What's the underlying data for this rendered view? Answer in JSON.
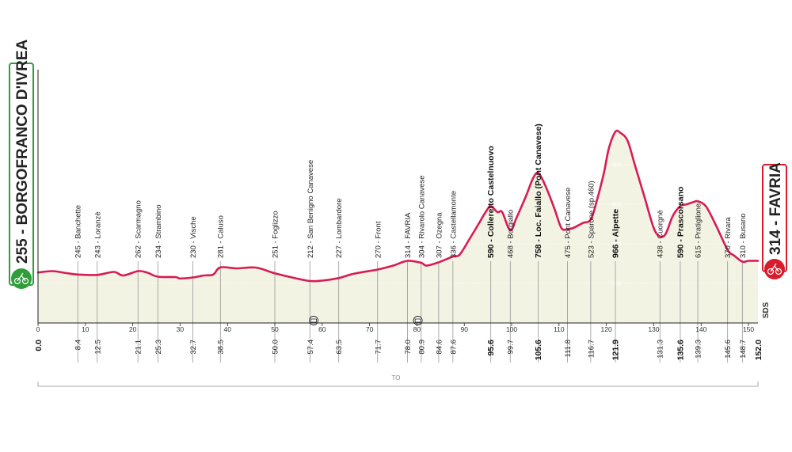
{
  "chart_data": {
    "type": "area",
    "series_color": "#d81c53",
    "fill_color": "#f3f3e4",
    "xlim": [
      0,
      152.0
    ],
    "ylim": [
      0,
      1000
    ],
    "x_ticks": [
      0,
      10,
      20,
      30,
      40,
      50,
      60,
      70,
      80,
      90,
      100,
      110,
      120,
      130,
      140,
      150
    ],
    "y_ticks": [
      200,
      400,
      600,
      800
    ],
    "start": {
      "label": "255 - BORGOFRANCO D'IVREA",
      "km": "0.0"
    },
    "finish": {
      "label": "314 - FAVRIA",
      "km": "152.0"
    },
    "points": [
      {
        "km": 8.4,
        "km_label": "8.4",
        "label": "245 - Banchette"
      },
      {
        "km": 12.5,
        "km_label": "12.5",
        "label": "243 - Loranzè"
      },
      {
        "km": 21.1,
        "km_label": "21.1",
        "label": "262 - Scarmagno"
      },
      {
        "km": 25.3,
        "km_label": "25.3",
        "label": "234 - Strambino"
      },
      {
        "km": 32.7,
        "km_label": "32.7",
        "label": "230 - Vische"
      },
      {
        "km": 38.5,
        "km_label": "38.5",
        "label": "281 - Caluso"
      },
      {
        "km": 50.0,
        "km_label": "50.0",
        "label": "251 - Foglizzo"
      },
      {
        "km": 57.4,
        "km_label": "57.4",
        "label": "212 - San Benigno Canavese"
      },
      {
        "km": 63.5,
        "km_label": "63.5",
        "label": "227 - Lombardore"
      },
      {
        "km": 71.7,
        "km_label": "71.7",
        "label": "270 - Front"
      },
      {
        "km": 78.0,
        "km_label": "78.0",
        "label": "314 - FAVRIA"
      },
      {
        "km": 80.9,
        "km_label": "80.9",
        "label": "304 - Rivarolo Canavese"
      },
      {
        "km": 84.6,
        "km_label": "84.6",
        "label": "307 - Ozegna"
      },
      {
        "km": 87.6,
        "km_label": "87.6",
        "label": "336 - Castellamonte"
      },
      {
        "km": 95.6,
        "km_label": "95.6",
        "label": "590 - Colleretto Castelnuovo",
        "bold": true
      },
      {
        "km": 99.7,
        "km_label": "99.7",
        "label": "468 - Borgiallo"
      },
      {
        "km": 105.6,
        "km_label": "105.6",
        "label": "758 - Loc. Faiallo (Pont Canavese)",
        "bold": true
      },
      {
        "km": 111.8,
        "km_label": "111.8",
        "label": "475 - Pont Canavese"
      },
      {
        "km": 116.7,
        "km_label": "116.7",
        "label": "523 - Sparone (sp.460)"
      },
      {
        "km": 121.9,
        "km_label": "121.9",
        "label": "966 - Alpette",
        "bold": true
      },
      {
        "km": 131.3,
        "km_label": "131.3",
        "label": "438 - Cuorgnè"
      },
      {
        "km": 135.6,
        "km_label": "135.6",
        "label": "590 - Prascorsano",
        "bold": true
      },
      {
        "km": 139.3,
        "km_label": "139.3",
        "label": "615 - Pratiglione"
      },
      {
        "km": 145.6,
        "km_label": "145.6",
        "label": "370 - Rivara"
      },
      {
        "km": 148.7,
        "km_label": "148.7",
        "label": "310 - Busano"
      }
    ],
    "profile": [
      [
        0,
        255
      ],
      [
        3,
        262
      ],
      [
        6,
        252
      ],
      [
        8.4,
        245
      ],
      [
        12.5,
        243
      ],
      [
        16,
        258
      ],
      [
        18,
        240
      ],
      [
        21.1,
        262
      ],
      [
        23,
        255
      ],
      [
        25.3,
        234
      ],
      [
        29,
        232
      ],
      [
        30,
        225
      ],
      [
        32.7,
        230
      ],
      [
        35,
        240
      ],
      [
        37,
        245
      ],
      [
        38.5,
        281
      ],
      [
        42,
        276
      ],
      [
        46,
        280
      ],
      [
        50,
        251
      ],
      [
        54,
        228
      ],
      [
        57.4,
        212
      ],
      [
        60,
        214
      ],
      [
        63.5,
        227
      ],
      [
        66,
        245
      ],
      [
        68,
        255
      ],
      [
        71.7,
        270
      ],
      [
        75,
        290
      ],
      [
        78,
        314
      ],
      [
        80.9,
        304
      ],
      [
        82,
        290
      ],
      [
        84.6,
        307
      ],
      [
        87.6,
        336
      ],
      [
        89,
        345
      ],
      [
        91,
        420
      ],
      [
        93,
        500
      ],
      [
        94.5,
        560
      ],
      [
        95.6,
        590
      ],
      [
        97,
        560
      ],
      [
        98,
        560
      ],
      [
        99.7,
        468
      ],
      [
        101,
        530
      ],
      [
        103,
        640
      ],
      [
        104.5,
        730
      ],
      [
        105.6,
        758
      ],
      [
        107,
        700
      ],
      [
        109,
        580
      ],
      [
        110.5,
        480
      ],
      [
        111.8,
        475
      ],
      [
        113,
        480
      ],
      [
        115,
        505
      ],
      [
        116.7,
        523
      ],
      [
        118,
        620
      ],
      [
        119.5,
        760
      ],
      [
        120.5,
        880
      ],
      [
        121.9,
        966
      ],
      [
        123,
        960
      ],
      [
        124.5,
        920
      ],
      [
        126,
        800
      ],
      [
        128,
        640
      ],
      [
        130,
        480
      ],
      [
        131.3,
        438
      ],
      [
        132.5,
        450
      ],
      [
        134,
        540
      ],
      [
        135.6,
        590
      ],
      [
        137,
        600
      ],
      [
        138.5,
        612
      ],
      [
        139.3,
        615
      ],
      [
        141,
        590
      ],
      [
        143,
        500
      ],
      [
        145.6,
        370
      ],
      [
        147,
        340
      ],
      [
        148.7,
        310
      ],
      [
        150,
        314
      ],
      [
        152,
        314
      ]
    ],
    "bridges_km": [
      58.2,
      80.2
    ],
    "sds_label": "SDS",
    "to_label": "TO"
  }
}
